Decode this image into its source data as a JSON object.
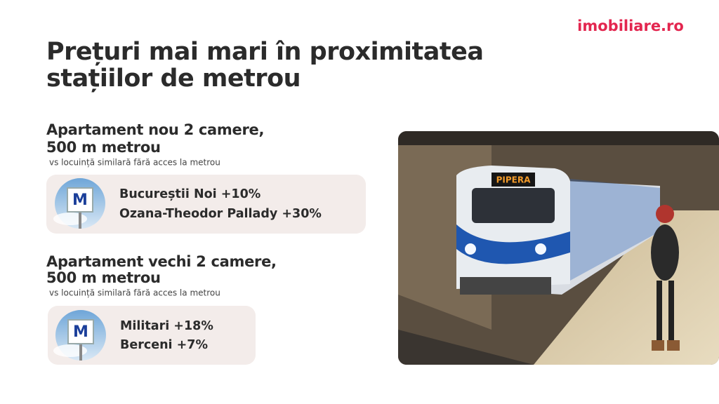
{
  "brand": "imobiliare.ro",
  "title": {
    "lines": [
      "Prețuri mai mari în proximitatea",
      "stațiilor de metrou"
    ]
  },
  "sections": [
    {
      "heading": [
        "Apartament nou 2 camere,",
        "500 m metrou"
      ],
      "note": "vs locuință similară fără acces la metrou",
      "icon_letter": "M",
      "items": [
        "Bucureștii Noi  +10%",
        "Ozana-Theodor Pallady  +30%"
      ]
    },
    {
      "heading": [
        "Apartament vechi 2 camere,",
        "500 m metrou"
      ],
      "note": "vs locuință similară fără acces la metrou",
      "icon_letter": "M",
      "items": [
        "Militari +18%",
        "Berceni +7%"
      ]
    }
  ],
  "photo": {
    "destination_sign": "PIPERA"
  }
}
